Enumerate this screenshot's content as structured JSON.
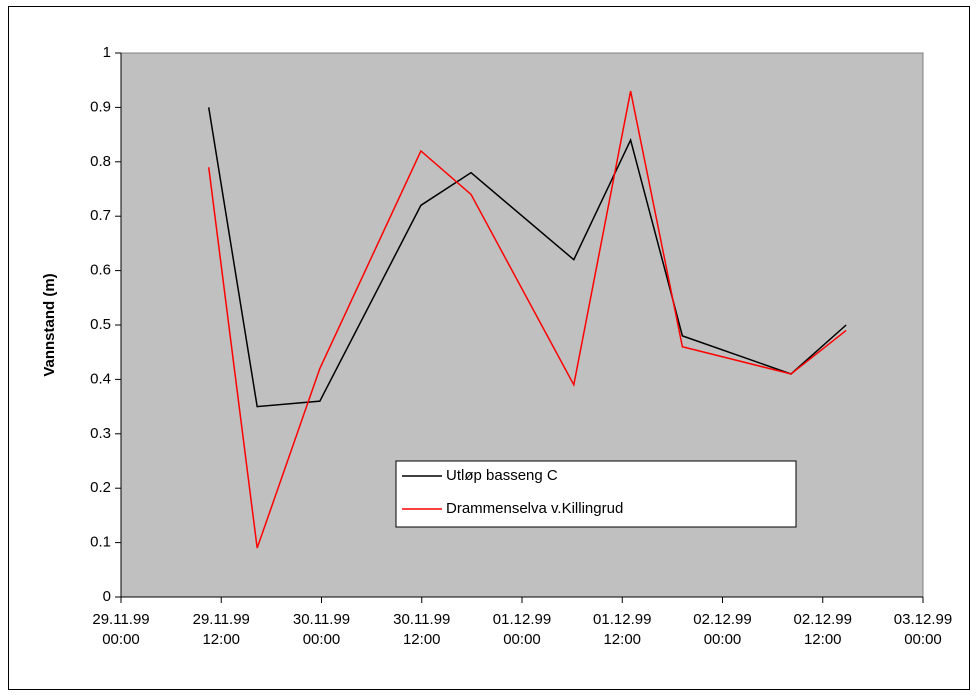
{
  "chart_data": {
    "type": "line",
    "y_label": "Vannstand (m)",
    "x": [
      10.5,
      16.3,
      23.8,
      35.9,
      41.9,
      54.2,
      61.0,
      67.2,
      80.2,
      86.8
    ],
    "series": [
      {
        "name": "Utløp basseng C",
        "color": "#000000",
        "values": [
          0.9,
          0.35,
          0.36,
          0.72,
          0.78,
          0.62,
          0.84,
          0.48,
          0.41,
          0.5
        ]
      },
      {
        "name": "Drammenselva v.Killingrud",
        "color": "#ff0000",
        "values": [
          0.79,
          0.09,
          0.42,
          0.82,
          0.74,
          0.39,
          0.93,
          0.46,
          0.41,
          0.49
        ]
      }
    ],
    "xlim": [
      0,
      96
    ],
    "xticks": [
      {
        "value": 0,
        "label": "29.11.99 00:00"
      },
      {
        "value": 12,
        "label": "29.11.99 12:00"
      },
      {
        "value": 24,
        "label": "30.11.99 00:00"
      },
      {
        "value": 36,
        "label": "30.11.99 12:00"
      },
      {
        "value": 48,
        "label": "01.12.99 00:00"
      },
      {
        "value": 60,
        "label": "01.12.99 12:00"
      },
      {
        "value": 72,
        "label": "02.12.99 00:00"
      },
      {
        "value": 84,
        "label": "02.12.99 12:00"
      },
      {
        "value": 96,
        "label": "03.12.99 00:00"
      }
    ],
    "ylim": [
      0,
      1
    ],
    "yticks": [
      0,
      0.1,
      0.2,
      0.3,
      0.4,
      0.5,
      0.6,
      0.7,
      0.8,
      0.9,
      1
    ],
    "plot_background": "#c0c0c0",
    "grid": false
  }
}
